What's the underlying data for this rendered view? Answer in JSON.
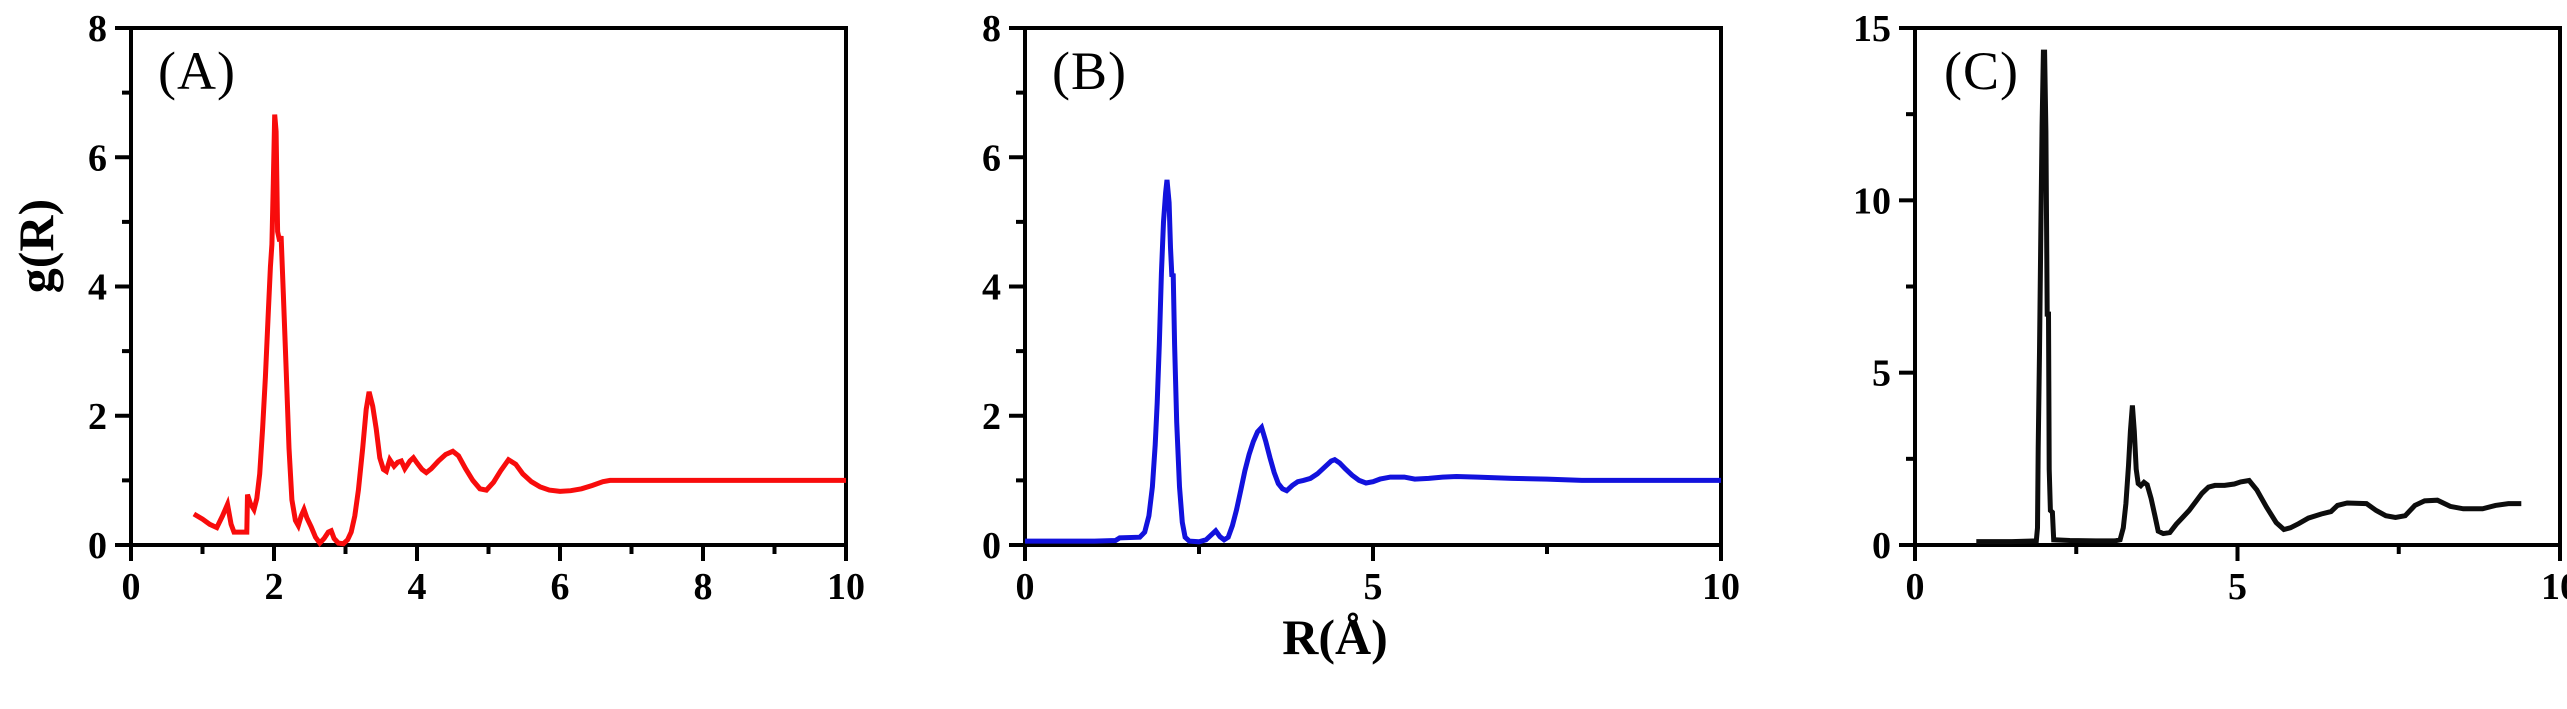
{
  "figure": {
    "background": "#ffffff"
  },
  "ylabel": "g(R)",
  "xlabel": "R(Å)",
  "chart_data": [
    {
      "type": "line",
      "panel_label": "(A)",
      "color": "#f80c0c",
      "xlim": [
        0,
        10
      ],
      "ylim": [
        0,
        8
      ],
      "grid": false,
      "legend": "none",
      "xticks": {
        "major_values": [
          0,
          2,
          4,
          6,
          8,
          10
        ],
        "major_labels": [
          "0",
          "2",
          "4",
          "6",
          "8",
          "10"
        ],
        "minor_values": [
          1,
          3,
          5,
          7,
          9
        ]
      },
      "yticks": {
        "major_values": [
          0,
          2,
          4,
          6,
          8
        ],
        "major_labels": [
          "0",
          "2",
          "4",
          "6",
          "8"
        ],
        "minor_values": [
          1,
          3,
          5,
          7
        ]
      },
      "series": [
        {
          "name": "g(R)-red",
          "points": [
            [
              0.88,
              0.48
            ],
            [
              1.0,
              0.4
            ],
            [
              1.1,
              0.32
            ],
            [
              1.2,
              0.27
            ],
            [
              1.28,
              0.45
            ],
            [
              1.35,
              0.63
            ],
            [
              1.4,
              0.32
            ],
            [
              1.44,
              0.2
            ],
            [
              1.62,
              0.2
            ],
            [
              1.63,
              0.78
            ],
            [
              1.67,
              0.64
            ],
            [
              1.72,
              0.55
            ],
            [
              1.76,
              0.72
            ],
            [
              1.8,
              1.1
            ],
            [
              1.84,
              1.8
            ],
            [
              1.88,
              2.6
            ],
            [
              1.92,
              3.6
            ],
            [
              1.95,
              4.3
            ],
            [
              1.97,
              4.65
            ],
            [
              1.99,
              5.6
            ],
            [
              2.01,
              6.66
            ],
            [
              2.03,
              6.4
            ],
            [
              2.05,
              4.85
            ],
            [
              2.08,
              4.7
            ],
            [
              2.1,
              4.78
            ],
            [
              2.13,
              3.9
            ],
            [
              2.17,
              2.7
            ],
            [
              2.21,
              1.5
            ],
            [
              2.25,
              0.7
            ],
            [
              2.3,
              0.38
            ],
            [
              2.34,
              0.3
            ],
            [
              2.38,
              0.45
            ],
            [
              2.42,
              0.55
            ],
            [
              2.46,
              0.42
            ],
            [
              2.52,
              0.28
            ],
            [
              2.58,
              0.12
            ],
            [
              2.64,
              0.03
            ],
            [
              2.7,
              0.1
            ],
            [
              2.76,
              0.2
            ],
            [
              2.8,
              0.22
            ],
            [
              2.84,
              0.1
            ],
            [
              2.9,
              0.03
            ],
            [
              2.97,
              0.02
            ],
            [
              3.03,
              0.08
            ],
            [
              3.08,
              0.2
            ],
            [
              3.13,
              0.45
            ],
            [
              3.18,
              0.85
            ],
            [
              3.24,
              1.5
            ],
            [
              3.29,
              2.1
            ],
            [
              3.33,
              2.37
            ],
            [
              3.38,
              2.15
            ],
            [
              3.43,
              1.8
            ],
            [
              3.48,
              1.35
            ],
            [
              3.53,
              1.17
            ],
            [
              3.57,
              1.14
            ],
            [
              3.62,
              1.32
            ],
            [
              3.68,
              1.22
            ],
            [
              3.73,
              1.28
            ],
            [
              3.78,
              1.3
            ],
            [
              3.83,
              1.18
            ],
            [
              3.9,
              1.3
            ],
            [
              3.95,
              1.35
            ],
            [
              4.0,
              1.27
            ],
            [
              4.07,
              1.17
            ],
            [
              4.13,
              1.12
            ],
            [
              4.2,
              1.18
            ],
            [
              4.3,
              1.3
            ],
            [
              4.4,
              1.4
            ],
            [
              4.5,
              1.45
            ],
            [
              4.58,
              1.38
            ],
            [
              4.68,
              1.18
            ],
            [
              4.78,
              1.0
            ],
            [
              4.88,
              0.87
            ],
            [
              4.97,
              0.85
            ],
            [
              5.07,
              0.97
            ],
            [
              5.17,
              1.15
            ],
            [
              5.28,
              1.32
            ],
            [
              5.38,
              1.25
            ],
            [
              5.48,
              1.1
            ],
            [
              5.6,
              0.98
            ],
            [
              5.72,
              0.9
            ],
            [
              5.85,
              0.85
            ],
            [
              6.0,
              0.83
            ],
            [
              6.15,
              0.84
            ],
            [
              6.3,
              0.87
            ],
            [
              6.45,
              0.92
            ],
            [
              6.6,
              0.98
            ],
            [
              6.7,
              1.0
            ],
            [
              7.5,
              1.0
            ],
            [
              8.5,
              1.0
            ],
            [
              10.0,
              1.0
            ]
          ]
        }
      ]
    },
    {
      "type": "line",
      "panel_label": "(B)",
      "color": "#1212dd",
      "xlim": [
        0,
        10
      ],
      "ylim": [
        0,
        8
      ],
      "grid": false,
      "legend": "none",
      "xticks": {
        "major_values": [
          0,
          5,
          10
        ],
        "major_labels": [
          "0",
          "5",
          "10"
        ],
        "minor_values": [
          2.5,
          7.5
        ]
      },
      "yticks": {
        "major_values": [
          0,
          2,
          4,
          6,
          8
        ],
        "major_labels": [
          "0",
          "2",
          "4",
          "6",
          "8"
        ],
        "minor_values": [
          1,
          3,
          5,
          7
        ]
      },
      "series": [
        {
          "name": "g(R)-blue",
          "points": [
            [
              0.0,
              0.06
            ],
            [
              0.5,
              0.06
            ],
            [
              1.0,
              0.06
            ],
            [
              1.3,
              0.07
            ],
            [
              1.36,
              0.11
            ],
            [
              1.65,
              0.12
            ],
            [
              1.72,
              0.2
            ],
            [
              1.78,
              0.45
            ],
            [
              1.83,
              0.9
            ],
            [
              1.87,
              1.55
            ],
            [
              1.9,
              2.2
            ],
            [
              1.93,
              3.1
            ],
            [
              1.96,
              4.2
            ],
            [
              1.99,
              5.0
            ],
            [
              2.02,
              5.45
            ],
            [
              2.04,
              5.65
            ],
            [
              2.07,
              5.3
            ],
            [
              2.09,
              4.6
            ],
            [
              2.11,
              4.15
            ],
            [
              2.13,
              4.2
            ],
            [
              2.15,
              3.1
            ],
            [
              2.18,
              1.9
            ],
            [
              2.22,
              0.9
            ],
            [
              2.26,
              0.35
            ],
            [
              2.3,
              0.12
            ],
            [
              2.36,
              0.06
            ],
            [
              2.5,
              0.05
            ],
            [
              2.6,
              0.08
            ],
            [
              2.68,
              0.16
            ],
            [
              2.74,
              0.22
            ],
            [
              2.8,
              0.13
            ],
            [
              2.86,
              0.08
            ],
            [
              2.92,
              0.12
            ],
            [
              2.98,
              0.3
            ],
            [
              3.04,
              0.55
            ],
            [
              3.1,
              0.85
            ],
            [
              3.16,
              1.15
            ],
            [
              3.22,
              1.4
            ],
            [
              3.28,
              1.6
            ],
            [
              3.34,
              1.75
            ],
            [
              3.4,
              1.82
            ],
            [
              3.46,
              1.6
            ],
            [
              3.52,
              1.35
            ],
            [
              3.58,
              1.12
            ],
            [
              3.64,
              0.95
            ],
            [
              3.7,
              0.87
            ],
            [
              3.76,
              0.84
            ],
            [
              3.84,
              0.92
            ],
            [
              3.92,
              0.98
            ],
            [
              4.0,
              1.0
            ],
            [
              4.1,
              1.03
            ],
            [
              4.2,
              1.1
            ],
            [
              4.3,
              1.2
            ],
            [
              4.4,
              1.3
            ],
            [
              4.45,
              1.32
            ],
            [
              4.52,
              1.27
            ],
            [
              4.6,
              1.18
            ],
            [
              4.7,
              1.08
            ],
            [
              4.8,
              1.0
            ],
            [
              4.9,
              0.96
            ],
            [
              5.0,
              0.98
            ],
            [
              5.1,
              1.02
            ],
            [
              5.25,
              1.05
            ],
            [
              5.45,
              1.05
            ],
            [
              5.6,
              1.02
            ],
            [
              5.8,
              1.03
            ],
            [
              6.0,
              1.05
            ],
            [
              6.2,
              1.06
            ],
            [
              6.5,
              1.05
            ],
            [
              7.0,
              1.03
            ],
            [
              7.5,
              1.02
            ],
            [
              8.0,
              1.0
            ],
            [
              9.0,
              1.0
            ],
            [
              10.0,
              1.0
            ]
          ]
        }
      ]
    },
    {
      "type": "line",
      "panel_label": "(C)",
      "color": "#0d0d0d",
      "xlim": [
        0,
        10
      ],
      "ylim": [
        0,
        15
      ],
      "grid": false,
      "legend": "none",
      "xticks": {
        "major_values": [
          0,
          5,
          10
        ],
        "major_labels": [
          "0",
          "5",
          "10"
        ],
        "minor_values": [
          2.5,
          7.5
        ]
      },
      "yticks": {
        "major_values": [
          0,
          5,
          10,
          15
        ],
        "major_labels": [
          "0",
          "5",
          "10",
          "15"
        ],
        "minor_values": [
          2.5,
          7.5,
          12.5
        ]
      },
      "series": [
        {
          "name": "g(R)-black",
          "points": [
            [
              0.95,
              0.1
            ],
            [
              1.5,
              0.1
            ],
            [
              1.88,
              0.12
            ],
            [
              1.9,
              0.5
            ],
            [
              1.91,
              2.8
            ],
            [
              1.93,
              5.6
            ],
            [
              1.95,
              9.0
            ],
            [
              1.97,
              12.2
            ],
            [
              1.99,
              14.3
            ],
            [
              2.01,
              14.3
            ],
            [
              2.03,
              12.0
            ],
            [
              2.05,
              6.7
            ],
            [
              2.07,
              6.7
            ],
            [
              2.08,
              2.2
            ],
            [
              2.1,
              1.0
            ],
            [
              2.13,
              0.95
            ],
            [
              2.15,
              0.15
            ],
            [
              2.4,
              0.13
            ],
            [
              2.8,
              0.12
            ],
            [
              3.1,
              0.12
            ],
            [
              3.18,
              0.15
            ],
            [
              3.23,
              0.5
            ],
            [
              3.27,
              1.2
            ],
            [
              3.31,
              2.3
            ],
            [
              3.34,
              3.3
            ],
            [
              3.37,
              4.05
            ],
            [
              3.4,
              3.3
            ],
            [
              3.43,
              2.2
            ],
            [
              3.46,
              1.78
            ],
            [
              3.5,
              1.72
            ],
            [
              3.55,
              1.82
            ],
            [
              3.6,
              1.75
            ],
            [
              3.66,
              1.35
            ],
            [
              3.72,
              0.85
            ],
            [
              3.77,
              0.4
            ],
            [
              3.85,
              0.33
            ],
            [
              3.95,
              0.36
            ],
            [
              4.05,
              0.6
            ],
            [
              4.15,
              0.8
            ],
            [
              4.25,
              1.0
            ],
            [
              4.35,
              1.25
            ],
            [
              4.45,
              1.5
            ],
            [
              4.55,
              1.68
            ],
            [
              4.65,
              1.73
            ],
            [
              4.8,
              1.73
            ],
            [
              4.95,
              1.77
            ],
            [
              5.05,
              1.83
            ],
            [
              5.18,
              1.87
            ],
            [
              5.3,
              1.6
            ],
            [
              5.45,
              1.1
            ],
            [
              5.6,
              0.65
            ],
            [
              5.72,
              0.45
            ],
            [
              5.82,
              0.5
            ],
            [
              5.95,
              0.62
            ],
            [
              6.1,
              0.78
            ],
            [
              6.3,
              0.9
            ],
            [
              6.45,
              0.97
            ],
            [
              6.55,
              1.15
            ],
            [
              6.7,
              1.22
            ],
            [
              7.0,
              1.2
            ],
            [
              7.15,
              1.0
            ],
            [
              7.3,
              0.85
            ],
            [
              7.45,
              0.8
            ],
            [
              7.6,
              0.85
            ],
            [
              7.75,
              1.15
            ],
            [
              7.9,
              1.28
            ],
            [
              8.1,
              1.3
            ],
            [
              8.3,
              1.12
            ],
            [
              8.5,
              1.05
            ],
            [
              8.8,
              1.05
            ],
            [
              9.0,
              1.15
            ],
            [
              9.2,
              1.2
            ],
            [
              9.4,
              1.2
            ]
          ]
        }
      ]
    }
  ]
}
